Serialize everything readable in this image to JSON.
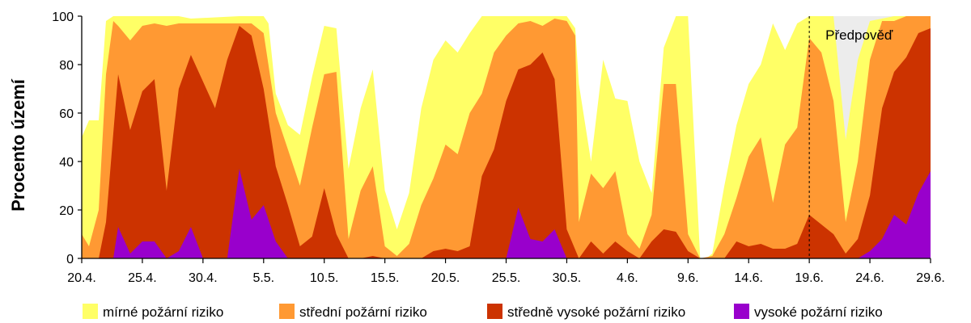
{
  "chart_data": {
    "type": "area",
    "stacked": false,
    "title": "",
    "ylabel": "Procento území",
    "xlabel": "",
    "ylim": [
      0,
      100
    ],
    "yticks": [
      0,
      20,
      40,
      60,
      80,
      100
    ],
    "xticks": [
      {
        "day": 0,
        "label": "20.4."
      },
      {
        "day": 5,
        "label": "25.4."
      },
      {
        "day": 10,
        "label": "30.4."
      },
      {
        "day": 15,
        "label": "5.5."
      },
      {
        "day": 20,
        "label": "10.5."
      },
      {
        "day": 25,
        "label": "15.5."
      },
      {
        "day": 30,
        "label": "20.5."
      },
      {
        "day": 35,
        "label": "25.5."
      },
      {
        "day": 40,
        "label": "30.5."
      },
      {
        "day": 45,
        "label": "4.6."
      },
      {
        "day": 50,
        "label": "9.6."
      },
      {
        "day": 55,
        "label": "14.6."
      },
      {
        "day": 60,
        "label": "19.6."
      },
      {
        "day": 65,
        "label": "24.6."
      },
      {
        "day": 70,
        "label": "29.6."
      }
    ],
    "annotation": {
      "label": "Předpověď",
      "start_day": 60,
      "end_day": 70
    },
    "legend_position": "bottom",
    "series": [
      {
        "name": "mírné požární riziko",
        "color": "#FFFF66",
        "values": [
          [
            0,
            50
          ],
          [
            0.6,
            57
          ],
          [
            1.4,
            57
          ],
          [
            2,
            98
          ],
          [
            2.6,
            100
          ],
          [
            8,
            100
          ],
          [
            9,
            99
          ],
          [
            13,
            100
          ],
          [
            15,
            100
          ],
          [
            15.4,
            97
          ],
          [
            16,
            68
          ],
          [
            17,
            55
          ],
          [
            18,
            51
          ],
          [
            19,
            75
          ],
          [
            20,
            96
          ],
          [
            21,
            95
          ],
          [
            22,
            37
          ],
          [
            23,
            62
          ],
          [
            24,
            78
          ],
          [
            25,
            28
          ],
          [
            26,
            12
          ],
          [
            27,
            27
          ],
          [
            28,
            62
          ],
          [
            29,
            82
          ],
          [
            30,
            90
          ],
          [
            31,
            85
          ],
          [
            32,
            93
          ],
          [
            33,
            100
          ],
          [
            40,
            100
          ],
          [
            40.7,
            95
          ],
          [
            41,
            72
          ],
          [
            42,
            40
          ],
          [
            43,
            82
          ],
          [
            44,
            66
          ],
          [
            45,
            65
          ],
          [
            46,
            40
          ],
          [
            47,
            27
          ],
          [
            48,
            87
          ],
          [
            49,
            100
          ],
          [
            50,
            100
          ],
          [
            51,
            0
          ],
          [
            51.5,
            0
          ],
          [
            52,
            2
          ],
          [
            53,
            30
          ],
          [
            54,
            55
          ],
          [
            55,
            72
          ],
          [
            56,
            80
          ],
          [
            57,
            97
          ],
          [
            58,
            86
          ],
          [
            59,
            97
          ],
          [
            60,
            100
          ],
          [
            62,
            100
          ],
          [
            63,
            49
          ],
          [
            64,
            82
          ],
          [
            65,
            98
          ],
          [
            67,
            100
          ],
          [
            70,
            100
          ]
        ]
      },
      {
        "name": "střední požární riziko",
        "color": "#FF9933",
        "values": [
          [
            0,
            10
          ],
          [
            0.6,
            5
          ],
          [
            1.4,
            20
          ],
          [
            2,
            76
          ],
          [
            2.6,
            98
          ],
          [
            3,
            96
          ],
          [
            4,
            90
          ],
          [
            5,
            96
          ],
          [
            6,
            97
          ],
          [
            7,
            96
          ],
          [
            8,
            97
          ],
          [
            9,
            97
          ],
          [
            10,
            97
          ],
          [
            11,
            97
          ],
          [
            12,
            97
          ],
          [
            13,
            97
          ],
          [
            14,
            97
          ],
          [
            15,
            93
          ],
          [
            16,
            60
          ],
          [
            17,
            45
          ],
          [
            18,
            30
          ],
          [
            19,
            54
          ],
          [
            20,
            76
          ],
          [
            21,
            77
          ],
          [
            22,
            8
          ],
          [
            23,
            28
          ],
          [
            24,
            38
          ],
          [
            25,
            5
          ],
          [
            26,
            1
          ],
          [
            27,
            6
          ],
          [
            28,
            22
          ],
          [
            29,
            33
          ],
          [
            30,
            47
          ],
          [
            31,
            43
          ],
          [
            32,
            60
          ],
          [
            33,
            68
          ],
          [
            34,
            85
          ],
          [
            35,
            92
          ],
          [
            36,
            97
          ],
          [
            37,
            98
          ],
          [
            38,
            96
          ],
          [
            39,
            99
          ],
          [
            40,
            98
          ],
          [
            40.7,
            92
          ],
          [
            41,
            15
          ],
          [
            42,
            35
          ],
          [
            43,
            29
          ],
          [
            44,
            36
          ],
          [
            45,
            10
          ],
          [
            46,
            4
          ],
          [
            47,
            18
          ],
          [
            48,
            72
          ],
          [
            49,
            72
          ],
          [
            50,
            10
          ],
          [
            51,
            0
          ],
          [
            52,
            1
          ],
          [
            53,
            10
          ],
          [
            54,
            25
          ],
          [
            55,
            42
          ],
          [
            56,
            50
          ],
          [
            57,
            23
          ],
          [
            58,
            47
          ],
          [
            59,
            54
          ],
          [
            60,
            91
          ],
          [
            61,
            85
          ],
          [
            62,
            65
          ],
          [
            63,
            15
          ],
          [
            64,
            40
          ],
          [
            65,
            82
          ],
          [
            66,
            98
          ],
          [
            67,
            98
          ],
          [
            68,
            100
          ],
          [
            70,
            100
          ]
        ]
      },
      {
        "name": "středně vysoké požární riziko",
        "color": "#CC3300",
        "values": [
          [
            0,
            0
          ],
          [
            1.4,
            0
          ],
          [
            2,
            15
          ],
          [
            3,
            76
          ],
          [
            4,
            53
          ],
          [
            5,
            69
          ],
          [
            6,
            74
          ],
          [
            7,
            28
          ],
          [
            8,
            70
          ],
          [
            9,
            84
          ],
          [
            10,
            73
          ],
          [
            11,
            62
          ],
          [
            12,
            82
          ],
          [
            13,
            96
          ],
          [
            14,
            92
          ],
          [
            15,
            70
          ],
          [
            16,
            38
          ],
          [
            17,
            22
          ],
          [
            18,
            5
          ],
          [
            19,
            9
          ],
          [
            20,
            29
          ],
          [
            21,
            10
          ],
          [
            22,
            0
          ],
          [
            23,
            0
          ],
          [
            24,
            1
          ],
          [
            25,
            0
          ],
          [
            28,
            0
          ],
          [
            29,
            3
          ],
          [
            30,
            4
          ],
          [
            31,
            3
          ],
          [
            32,
            5
          ],
          [
            33,
            34
          ],
          [
            34,
            45
          ],
          [
            35,
            65
          ],
          [
            36,
            78
          ],
          [
            37,
            80
          ],
          [
            38,
            85
          ],
          [
            39,
            74
          ],
          [
            40,
            12
          ],
          [
            41,
            0
          ],
          [
            42,
            7
          ],
          [
            43,
            2
          ],
          [
            44,
            7
          ],
          [
            45,
            3
          ],
          [
            46,
            0
          ],
          [
            47,
            7
          ],
          [
            48,
            12
          ],
          [
            49,
            11
          ],
          [
            50,
            3
          ],
          [
            51,
            0
          ],
          [
            53,
            0
          ],
          [
            54,
            7
          ],
          [
            55,
            5
          ],
          [
            56,
            6
          ],
          [
            57,
            4
          ],
          [
            58,
            4
          ],
          [
            59,
            6
          ],
          [
            60,
            18
          ],
          [
            61,
            14
          ],
          [
            62,
            10
          ],
          [
            63,
            2
          ],
          [
            64,
            8
          ],
          [
            65,
            26
          ],
          [
            66,
            62
          ],
          [
            67,
            77
          ],
          [
            68,
            83
          ],
          [
            69,
            93
          ],
          [
            70,
            95
          ]
        ]
      },
      {
        "name": "vysoké požární riziko",
        "color": "#9900CC",
        "values": [
          [
            0,
            0
          ],
          [
            2.6,
            0
          ],
          [
            3,
            13
          ],
          [
            4,
            2
          ],
          [
            5,
            7
          ],
          [
            6,
            7
          ],
          [
            7,
            0
          ],
          [
            8,
            3
          ],
          [
            9,
            13
          ],
          [
            10,
            0
          ],
          [
            12,
            0
          ],
          [
            13,
            37
          ],
          [
            14,
            16
          ],
          [
            15,
            22
          ],
          [
            16,
            7
          ],
          [
            17,
            0
          ],
          [
            35,
            0
          ],
          [
            36,
            21
          ],
          [
            37,
            8
          ],
          [
            38,
            7
          ],
          [
            39,
            12
          ],
          [
            40,
            0
          ],
          [
            64,
            0
          ],
          [
            65,
            3
          ],
          [
            66,
            8
          ],
          [
            67,
            18
          ],
          [
            68,
            14
          ],
          [
            69,
            27
          ],
          [
            70,
            36
          ]
        ]
      }
    ]
  }
}
